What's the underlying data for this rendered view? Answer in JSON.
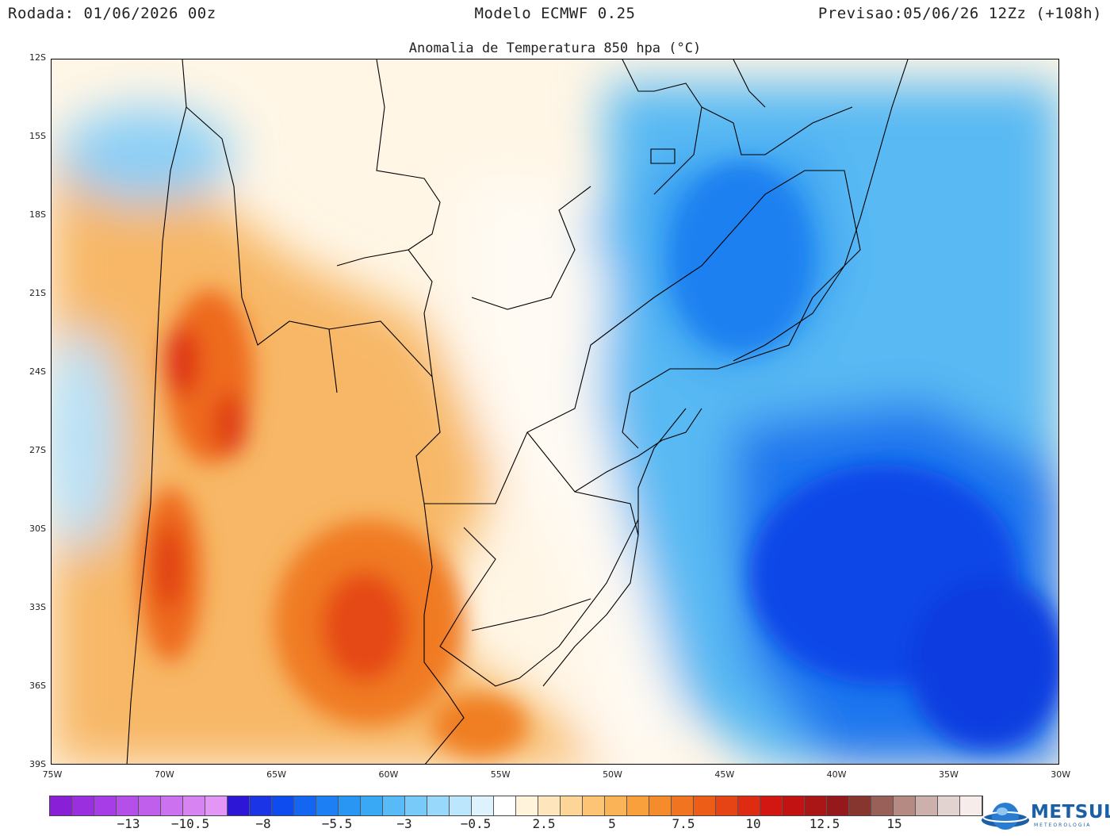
{
  "header": {
    "left": "Rodada: 01/06/2026 00z",
    "center": "Modelo ECMWF 0.25",
    "right": "Previsao:05/06/26 12Zz (+108h)"
  },
  "subtitle": "Anomalia de Temperatura 850 hpa (°C)",
  "map": {
    "lat_labels": [
      "12S",
      "15S",
      "18S",
      "21S",
      "24S",
      "27S",
      "30S",
      "33S",
      "36S",
      "39S"
    ],
    "lon_labels": [
      "75W",
      "70W",
      "65W",
      "60W",
      "55W",
      "50W",
      "45W",
      "40W",
      "35W",
      "30W"
    ],
    "lat_range": [
      -39,
      -12
    ],
    "lon_range": [
      -75,
      -30
    ],
    "anomaly_features": [
      {
        "name": "warm-center-argentina",
        "lon": -61,
        "lat": -33.6,
        "value": 10
      },
      {
        "name": "warm-andes-north",
        "lon": -69,
        "lat": -24,
        "value": 10
      },
      {
        "name": "warm-andes-south",
        "lon": -70,
        "lat": -31,
        "value": 10
      },
      {
        "name": "warm-uruguay-coast",
        "lon": -55.5,
        "lat": -37.5,
        "value": 7.5
      },
      {
        "name": "cold-atlantic-south",
        "lon": -38,
        "lat": -32,
        "value": -8
      },
      {
        "name": "cold-southeast-brazil",
        "lon": -45,
        "lat": -20,
        "value": -5.5
      }
    ]
  },
  "colorbar": {
    "colors": [
      "#8a1fd8",
      "#9a2fe0",
      "#a63de6",
      "#b44fe9",
      "#c05fec",
      "#cc71ef",
      "#d883f2",
      "#e396f5",
      "#2d16d6",
      "#1a34e6",
      "#0f4cf0",
      "#1466f2",
      "#1c7ff4",
      "#2a96f3",
      "#3aa9f5",
      "#58bbf7",
      "#78caf8",
      "#98d8fa",
      "#bce6fb",
      "#def2fd",
      "#ffffff",
      "#fff3dc",
      "#ffe5bb",
      "#fdd597",
      "#fcc474",
      "#fbb357",
      "#f9a03c",
      "#f58b2a",
      "#f17520",
      "#ed5d18",
      "#e64414",
      "#de2c12",
      "#d21712",
      "#c21212",
      "#aa1616",
      "#95181c",
      "#86362e",
      "#986058",
      "#b48a83",
      "#cbb0ab",
      "#e2d3d0",
      "#f6ecea"
    ],
    "labels": [
      "−13",
      "−10.5",
      "−8",
      "−5.5",
      "−3",
      "−0.5",
      "2.5",
      "5",
      "7.5",
      "10",
      "12.5",
      "15"
    ]
  },
  "logo": {
    "name": "METSUL",
    "sub": "METEOROLOGIA"
  }
}
